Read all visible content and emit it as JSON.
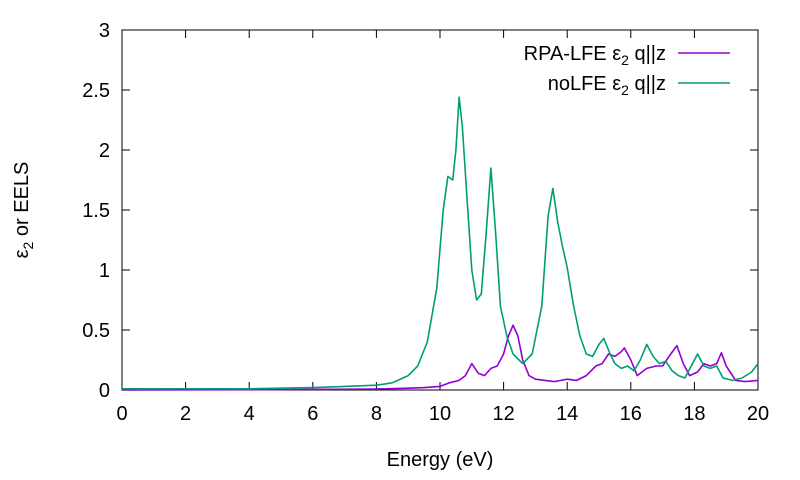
{
  "chart_data": {
    "type": "line",
    "title": "",
    "xlabel": "Energy (eV)",
    "ylabel": "ε",
    "ylabel_sub": "2",
    "ylabel_rest": " or EELS",
    "xlim": [
      0,
      20
    ],
    "ylim": [
      0,
      3
    ],
    "xticks": [
      0,
      2,
      4,
      6,
      8,
      10,
      12,
      14,
      16,
      18,
      20
    ],
    "yticks": [
      0,
      0.5,
      1,
      1.5,
      2,
      2.5,
      3
    ],
    "grid": false,
    "legend_position": "top-right",
    "series": [
      {
        "name": "RPA-LFE ε",
        "name_sub": "2",
        "name_rest": " q||z",
        "color": "#9400D3",
        "x": [
          0,
          5,
          8,
          9,
          9.5,
          10,
          10.3,
          10.6,
          10.8,
          11.0,
          11.2,
          11.4,
          11.6,
          11.8,
          12.0,
          12.15,
          12.3,
          12.45,
          12.6,
          12.8,
          13.0,
          13.3,
          13.6,
          14.0,
          14.3,
          14.6,
          14.9,
          15.1,
          15.3,
          15.5,
          15.7,
          15.8,
          16.0,
          16.2,
          16.5,
          16.8,
          17.0,
          17.2,
          17.45,
          17.65,
          17.85,
          18.1,
          18.3,
          18.5,
          18.7,
          18.85,
          19.0,
          19.3,
          19.6,
          20
        ],
        "y": [
          0.0,
          0.003,
          0.008,
          0.015,
          0.02,
          0.03,
          0.06,
          0.08,
          0.12,
          0.22,
          0.14,
          0.12,
          0.18,
          0.2,
          0.3,
          0.45,
          0.54,
          0.45,
          0.25,
          0.12,
          0.09,
          0.08,
          0.07,
          0.09,
          0.08,
          0.12,
          0.2,
          0.22,
          0.3,
          0.28,
          0.32,
          0.35,
          0.25,
          0.12,
          0.18,
          0.2,
          0.2,
          0.28,
          0.37,
          0.22,
          0.12,
          0.15,
          0.22,
          0.2,
          0.22,
          0.31,
          0.2,
          0.08,
          0.07,
          0.08
        ]
      },
      {
        "name": "noLFE ε",
        "name_sub": "2",
        "name_rest": " q||z",
        "color": "#009E73",
        "x": [
          0,
          4,
          6,
          7,
          8,
          8.5,
          9,
          9.3,
          9.6,
          9.9,
          10.1,
          10.25,
          10.4,
          10.5,
          10.6,
          10.7,
          10.85,
          11.0,
          11.15,
          11.3,
          11.45,
          11.6,
          11.75,
          11.9,
          12.1,
          12.3,
          12.6,
          12.9,
          13.2,
          13.4,
          13.55,
          13.7,
          13.85,
          14.0,
          14.2,
          14.4,
          14.6,
          14.8,
          15.0,
          15.15,
          15.35,
          15.5,
          15.7,
          15.9,
          16.1,
          16.3,
          16.5,
          16.7,
          16.9,
          17.1,
          17.3,
          17.5,
          17.7,
          17.9,
          18.1,
          18.3,
          18.5,
          18.7,
          18.9,
          19.2,
          19.5,
          19.8,
          20
        ],
        "y": [
          0.01,
          0.01,
          0.02,
          0.03,
          0.04,
          0.06,
          0.12,
          0.2,
          0.4,
          0.85,
          1.5,
          1.78,
          1.75,
          2.0,
          2.44,
          2.2,
          1.6,
          1.0,
          0.75,
          0.8,
          1.3,
          1.85,
          1.3,
          0.7,
          0.45,
          0.3,
          0.22,
          0.3,
          0.7,
          1.45,
          1.68,
          1.4,
          1.2,
          1.02,
          0.7,
          0.45,
          0.3,
          0.28,
          0.38,
          0.43,
          0.3,
          0.22,
          0.18,
          0.2,
          0.16,
          0.25,
          0.38,
          0.28,
          0.22,
          0.24,
          0.16,
          0.12,
          0.1,
          0.2,
          0.3,
          0.2,
          0.18,
          0.2,
          0.1,
          0.08,
          0.1,
          0.15,
          0.22
        ]
      }
    ]
  }
}
